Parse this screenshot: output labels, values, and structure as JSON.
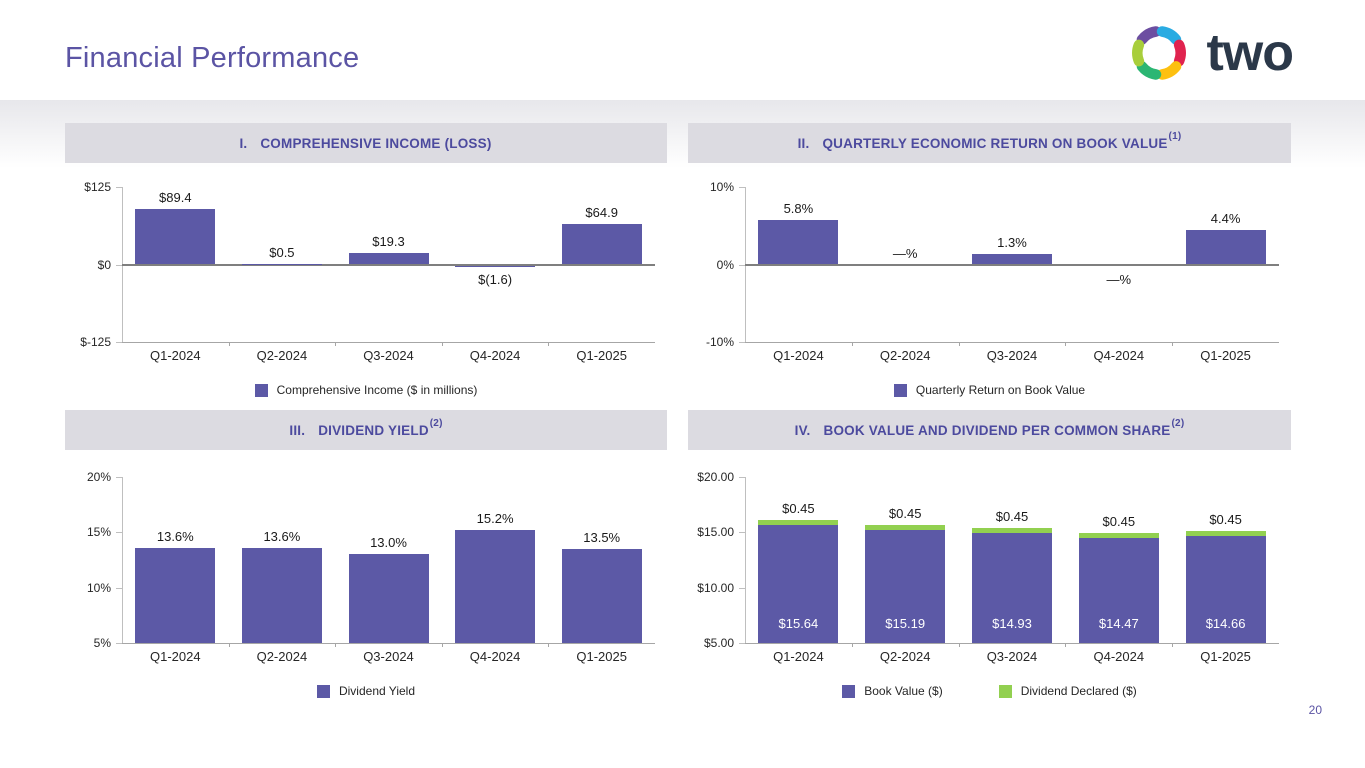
{
  "header": {
    "title": "Financial Performance",
    "logo_text": "two"
  },
  "footer": {
    "page_number": "20"
  },
  "colors": {
    "accent_purple": "#5B54A4",
    "header_text": "#4C4A9E",
    "strip_bg": "#DCDBE1",
    "bar_purple": "#5C59A6",
    "dividend_green": "#92D050",
    "logo_text": "#2B3849",
    "logo_segments": [
      "#6C4EA1",
      "#29ABE2",
      "#E0234E",
      "#FDC010",
      "#2BB673",
      "#A8CE3B"
    ]
  },
  "chart_data": [
    {
      "type": "bar",
      "numeral": "I.",
      "title": "COMPREHENSIVE INCOME (LOSS)",
      "footnote": "",
      "categories": [
        "Q1-2024",
        "Q2-2024",
        "Q3-2024",
        "Q4-2024",
        "Q1-2025"
      ],
      "values": [
        89.4,
        0.5,
        19.3,
        -1.6,
        64.9
      ],
      "labels": [
        "$89.4",
        "$0.5",
        "$19.3",
        "$(1.6)",
        "$64.9"
      ],
      "label_side": [
        "above",
        "above",
        "above",
        "below",
        "above"
      ],
      "ylim": [
        -125,
        125
      ],
      "baseline": 0,
      "grid": false,
      "bar_color": "#5C59A6",
      "ticks": [
        {
          "label": "$125",
          "value": 125
        },
        {
          "label": "$0",
          "value": 0
        },
        {
          "label": "$-125",
          "value": -125
        }
      ],
      "legend_position": "bottom",
      "legend": [
        {
          "label": "Comprehensive Income ($ in millions)",
          "color": "#5C59A6"
        }
      ]
    },
    {
      "type": "bar",
      "numeral": "II.",
      "title": "QUARTERLY ECONOMIC RETURN ON BOOK VALUE",
      "footnote": "(1)",
      "categories": [
        "Q1-2024",
        "Q2-2024",
        "Q3-2024",
        "Q4-2024",
        "Q1-2025"
      ],
      "values": [
        5.8,
        0,
        1.3,
        0,
        4.4
      ],
      "labels": [
        "5.8%",
        "—%",
        "1.3%",
        "—%",
        "4.4%"
      ],
      "label_side": [
        "above",
        "above",
        "above",
        "below",
        "above"
      ],
      "ylim": [
        -10,
        10
      ],
      "baseline": 0,
      "grid": false,
      "bar_color": "#5C59A6",
      "ticks": [
        {
          "label": "10%",
          "value": 10
        },
        {
          "label": "0%",
          "value": 0
        },
        {
          "label": "-10%",
          "value": -10
        }
      ],
      "legend_position": "bottom",
      "legend": [
        {
          "label": "Quarterly Return on Book Value",
          "color": "#5C59A6"
        }
      ]
    },
    {
      "type": "bar",
      "numeral": "III.",
      "title": "DIVIDEND YIELD",
      "footnote": "(2)",
      "categories": [
        "Q1-2024",
        "Q2-2024",
        "Q3-2024",
        "Q4-2024",
        "Q1-2025"
      ],
      "values": [
        13.6,
        13.6,
        13.0,
        15.2,
        13.5
      ],
      "labels": [
        "13.6%",
        "13.6%",
        "13.0%",
        "15.2%",
        "13.5%"
      ],
      "label_side": [
        "above",
        "above",
        "above",
        "above",
        "above"
      ],
      "ylim": [
        5,
        20
      ],
      "baseline": 5,
      "grid": false,
      "bar_color": "#5C59A6",
      "ticks": [
        {
          "label": "20%",
          "value": 20
        },
        {
          "label": "15%",
          "value": 15
        },
        {
          "label": "10%",
          "value": 10
        },
        {
          "label": "5%",
          "value": 5
        }
      ],
      "legend_position": "bottom",
      "legend": [
        {
          "label": "Dividend Yield",
          "color": "#5C59A6"
        }
      ]
    },
    {
      "type": "stacked-bar",
      "numeral": "IV.",
      "title": "BOOK VALUE AND DIVIDEND PER COMMON SHARE",
      "footnote": "(2)",
      "categories": [
        "Q1-2024",
        "Q2-2024",
        "Q3-2024",
        "Q4-2024",
        "Q1-2025"
      ],
      "series": [
        {
          "name": "Book Value ($)",
          "color": "#5C59A6",
          "values": [
            15.64,
            15.19,
            14.93,
            14.47,
            14.66
          ],
          "labels": [
            "$15.64",
            "$15.19",
            "$14.93",
            "$14.47",
            "$14.66"
          ],
          "label_pos": "inside"
        },
        {
          "name": "Dividend Declared ($)",
          "color": "#92D050",
          "values": [
            0.45,
            0.45,
            0.45,
            0.45,
            0.45
          ],
          "labels": [
            "$0.45",
            "$0.45",
            "$0.45",
            "$0.45",
            "$0.45"
          ],
          "label_pos": "above"
        }
      ],
      "ylim": [
        5,
        20
      ],
      "baseline": 5,
      "grid": false,
      "ticks": [
        {
          "label": "$20.00",
          "value": 20
        },
        {
          "label": "$15.00",
          "value": 15
        },
        {
          "label": "$10.00",
          "value": 10
        },
        {
          "label": "$5.00",
          "value": 5
        }
      ],
      "legend_position": "bottom",
      "legend": [
        {
          "label": "Book Value ($)",
          "color": "#5C59A6"
        },
        {
          "label": "Dividend Declared ($)",
          "color": "#92D050"
        }
      ]
    }
  ]
}
